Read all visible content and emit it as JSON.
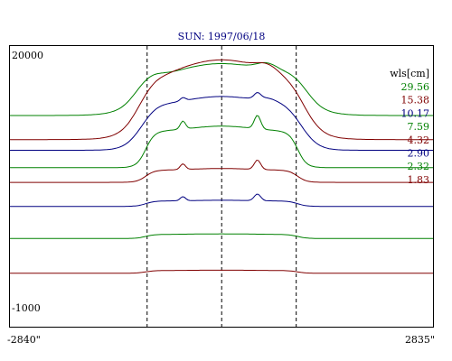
{
  "chart_data": {
    "type": "line",
    "title": "SUN: 1997/06/18",
    "xlabel": "",
    "ylabel": "",
    "x_tick_labels": [
      "-2840\"",
      "2835\""
    ],
    "xlim": [
      -2840,
      2835
    ],
    "y_tick_labels": [
      "20000",
      "-1000"
    ],
    "ylim": [
      -1000,
      20000
    ],
    "grid": false,
    "legend_title": "wls[cm]",
    "legend_position": "top-right",
    "reference_lines_x": [
      -1000,
      0,
      1000
    ],
    "series": [
      {
        "name": "29.56",
        "color": "#008000",
        "offset": 18400,
        "base": 14800,
        "peak": 18200,
        "limb": 1000,
        "bump": [
          0,
          0
        ]
      },
      {
        "name": "15.38",
        "color": "#800000",
        "offset": 16500,
        "base": 13000,
        "peak": 18200,
        "limb": 800,
        "bump": [
          0,
          0
        ]
      },
      {
        "name": "10.17",
        "color": "#000080",
        "offset": 14700,
        "base": 12200,
        "peak": 15700,
        "limb": 500,
        "bump": [
          400,
          0
        ]
      },
      {
        "name": "7.59",
        "color": "#008000",
        "offset": 13200,
        "base": 10900,
        "peak": 13600,
        "limb": 0,
        "bump": [
          1000,
          0
        ]
      },
      {
        "name": "4.32",
        "color": "#800000",
        "offset": 11300,
        "base": 9800,
        "peak": 10700,
        "limb": 0,
        "bump": [
          700,
          0
        ]
      },
      {
        "name": "2.90",
        "color": "#000080",
        "offset": 9300,
        "base": 8000,
        "peak": 8400,
        "limb": 0,
        "bump": [
          500,
          0
        ]
      },
      {
        "name": "2.32",
        "color": "#008000",
        "offset": 7200,
        "base": 5600,
        "peak": 5900,
        "limb": 0,
        "bump": [
          0,
          0
        ]
      },
      {
        "name": "1.83",
        "color": "#800000",
        "offset": 4200,
        "base": 3000,
        "peak": 3200,
        "limb": 0,
        "bump": [
          0,
          0
        ]
      }
    ]
  }
}
